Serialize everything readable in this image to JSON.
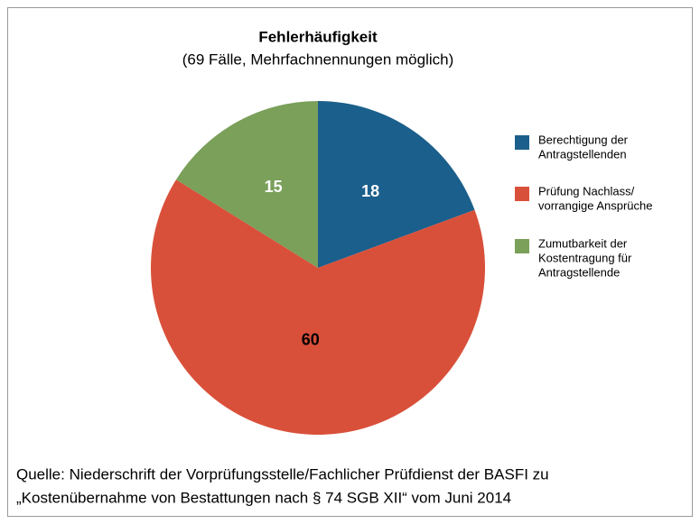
{
  "chart_data": {
    "type": "pie",
    "title": "Fehlerhäufigkeit",
    "subtitle": "(69 Fälle, Mehrfachnennungen möglich)",
    "categories": [
      [
        "Berechtigung der",
        "Antragstellenden"
      ],
      [
        "Prüfung Nachlass/",
        "vorrangige Ansprüche"
      ],
      [
        "Zumutbarkeit der",
        "Kostentragung für",
        "Antragstellende"
      ]
    ],
    "values": [
      18,
      60,
      15
    ],
    "colors": [
      "#1b5f8c",
      "#d9503a",
      "#7aa05a"
    ],
    "value_label_colors": [
      "#ffffff",
      "#000000",
      "#ffffff"
    ],
    "legend": "right",
    "source": [
      "Quelle: Niederschrift der Vorprüfungsstelle/Fachlicher Prüfdienst der BASFI zu",
      "„Kostenübernahme von Bestattungen nach § 74 SGB XII“ vom Juni 2014"
    ]
  }
}
